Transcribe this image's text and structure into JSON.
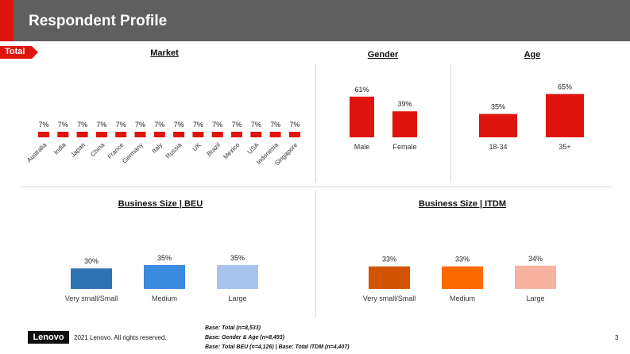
{
  "header": {
    "title": "Respondent Profile"
  },
  "total_tag": "Total",
  "colors": {
    "red": "#e0140f",
    "header_bg": "#5f5f5f",
    "beu": [
      "#2e74b5",
      "#3a8ae0",
      "#a8c4ec"
    ],
    "itdm": [
      "#d35400",
      "#ff6a00",
      "#f7b2a0"
    ]
  },
  "chart_data": [
    {
      "id": "market",
      "type": "bar",
      "title": "Market",
      "categories": [
        "Australia",
        "India",
        "Japan",
        "China",
        "France",
        "Germany",
        "Italy",
        "Russia",
        "UK",
        "Brazil",
        "Mexico",
        "USA",
        "Indonesia",
        "Singapore"
      ],
      "values": [
        7,
        7,
        7,
        7,
        7,
        7,
        7,
        7,
        7,
        7,
        7,
        7,
        7,
        7
      ],
      "labels": [
        "7%",
        "7%",
        "7%",
        "7%",
        "7%",
        "7%",
        "7%",
        "7%",
        "7%",
        "7%",
        "7%",
        "7%",
        "7%",
        "7%"
      ]
    },
    {
      "id": "gender",
      "type": "bar",
      "title": "Gender",
      "categories": [
        "Male",
        "Female"
      ],
      "values": [
        61,
        39
      ],
      "labels": [
        "61%",
        "39%"
      ]
    },
    {
      "id": "age",
      "type": "bar",
      "title": "Age",
      "categories": [
        "18-34",
        "35+"
      ],
      "values": [
        35,
        65
      ],
      "labels": [
        "35%",
        "65%"
      ]
    },
    {
      "id": "beu",
      "type": "bar",
      "title": "Business Size | BEU",
      "categories": [
        "Very small/Small",
        "Medium",
        "Large"
      ],
      "values": [
        30,
        35,
        35
      ],
      "labels": [
        "30%",
        "35%",
        "35%"
      ]
    },
    {
      "id": "itdm",
      "type": "bar",
      "title": "Business Size | ITDM",
      "categories": [
        "Very small/Small",
        "Medium",
        "Large"
      ],
      "values": [
        33,
        33,
        34
      ],
      "labels": [
        "33%",
        "33%",
        "34%"
      ]
    }
  ],
  "footer": {
    "logo": "Lenovo",
    "copyright": "2021 Lenovo. All rights reserved.",
    "bases": [
      "Base: Total (n=8,533)",
      "Base: Gender & Age (n=8,493)",
      "Base: Total BEU (n=4,126) | Base: Total ITDM (n=4,407)"
    ],
    "page_number": "3"
  }
}
